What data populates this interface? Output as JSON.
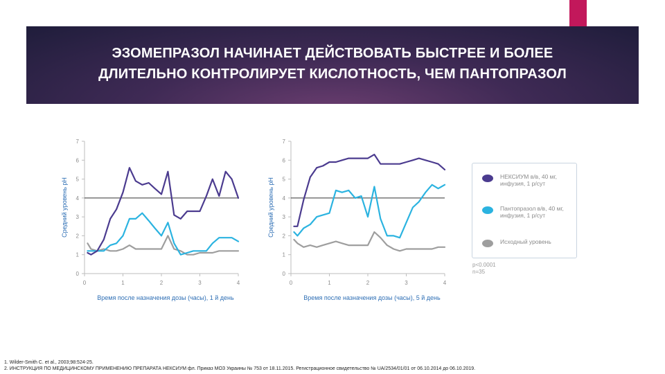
{
  "slide": {
    "title_line1": "ЭЗОМЕПРАЗОЛ НАЧИНАЕТ ДЕЙСТВОВАТЬ БЫСТРЕЕ И БОЛЕЕ",
    "title_line2": "ДЛИТЕЛЬНО КОНТРОЛИРУЕТ КИСЛОТНОСТЬ, ЧЕМ ПАНТОПРАЗОЛ",
    "colors": {
      "banner": "#2b2346",
      "accent": "#c2185b",
      "axis_text": "#2f6fb5"
    }
  },
  "legend": {
    "items": [
      {
        "label": "НЕКСИУМ в/в, 40 мг, инфузия, 1 р/сут",
        "color": "#4b3b8f"
      },
      {
        "label": "Пантопразол в/в, 40 мг, инфузия, 1 р/сут",
        "color": "#2bb3e0"
      },
      {
        "label": "Исходный уровень",
        "color": "#9e9e9e"
      }
    ]
  },
  "stats": {
    "p": "p<0.0001",
    "n": "n=35"
  },
  "references": [
    "1. Wilder-Smith C. et al., 2003;98:524-25.",
    "2. ИНСТРУКЦИЯ ПО МЕДИЦИНСКОМУ ПРИМЕНЕНИЮ ПРЕПАРАТА НЕКСИУМ фл. Приказ МОЗ Украины № 753 от 18.11.2015. Регистрационное свидетельство № UA/2534/01/01 от 06.10.2014 до 06.10.2019."
  ],
  "chart_data": [
    {
      "type": "line",
      "xlabel": "Время после назначения дозы (часы), 1 й день",
      "ylabel": "Средний уровень pH",
      "xlim": [
        0,
        4
      ],
      "ylim": [
        0,
        7
      ],
      "xticks": [
        0,
        1,
        2,
        3,
        4
      ],
      "yticks": [
        0,
        1,
        2,
        3,
        4,
        5,
        6,
        7
      ],
      "reference_line": 4,
      "series": [
        {
          "name": "НЕКСИУМ в/в, 40 мг, инфузия, 1 р/сут",
          "color": "#4b3b8f",
          "x": [
            0.08,
            0.17,
            0.33,
            0.5,
            0.67,
            0.83,
            1.0,
            1.17,
            1.33,
            1.5,
            1.67,
            1.83,
            2.0,
            2.17,
            2.33,
            2.5,
            2.67,
            2.83,
            3.0,
            3.17,
            3.33,
            3.5,
            3.67,
            3.83,
            4.0
          ],
          "y": [
            1.1,
            1.0,
            1.2,
            1.8,
            2.9,
            3.4,
            4.3,
            5.6,
            4.9,
            4.7,
            4.8,
            4.5,
            4.2,
            5.4,
            3.1,
            2.9,
            3.3,
            3.3,
            3.3,
            4.1,
            5.0,
            4.1,
            5.4,
            5.0,
            4.0
          ]
        },
        {
          "name": "Пантопразол в/в, 40 мг, инфузия, 1 р/сут",
          "color": "#2bb3e0",
          "x": [
            0.08,
            0.17,
            0.33,
            0.5,
            0.67,
            0.83,
            1.0,
            1.17,
            1.33,
            1.5,
            1.67,
            1.83,
            2.0,
            2.17,
            2.33,
            2.5,
            2.67,
            2.83,
            3.0,
            3.17,
            3.33,
            3.5,
            3.67,
            3.83,
            4.0
          ],
          "y": [
            1.2,
            1.2,
            1.2,
            1.2,
            1.5,
            1.6,
            2.0,
            2.9,
            2.9,
            3.2,
            2.8,
            2.4,
            2.0,
            2.7,
            1.6,
            1.0,
            1.1,
            1.2,
            1.2,
            1.2,
            1.6,
            1.9,
            1.9,
            1.9,
            1.7
          ]
        },
        {
          "name": "Исходный уровень",
          "color": "#9e9e9e",
          "x": [
            0.08,
            0.17,
            0.33,
            0.5,
            0.67,
            0.83,
            1.0,
            1.17,
            1.33,
            1.5,
            1.67,
            1.83,
            2.0,
            2.17,
            2.33,
            2.5,
            2.67,
            2.83,
            3.0,
            3.17,
            3.33,
            3.5,
            3.67,
            3.83,
            4.0
          ],
          "y": [
            1.6,
            1.3,
            1.2,
            1.3,
            1.2,
            1.2,
            1.3,
            1.5,
            1.3,
            1.3,
            1.3,
            1.3,
            1.3,
            2.0,
            1.3,
            1.2,
            1.0,
            1.0,
            1.1,
            1.1,
            1.1,
            1.2,
            1.2,
            1.2,
            1.2
          ]
        }
      ]
    },
    {
      "type": "line",
      "xlabel": "Время после назначения дозы (часы), 5 й день",
      "ylabel": "Средний уровень pH",
      "xlim": [
        0,
        4
      ],
      "ylim": [
        0,
        7
      ],
      "xticks": [
        0,
        1,
        2,
        3,
        4
      ],
      "yticks": [
        0,
        1,
        2,
        3,
        4,
        5,
        6,
        7
      ],
      "reference_line": 4,
      "series": [
        {
          "name": "НЕКСИУМ в/в, 40 мг, инфузия, 1 р/сут",
          "color": "#4b3b8f",
          "x": [
            0.08,
            0.17,
            0.33,
            0.5,
            0.67,
            0.83,
            1.0,
            1.17,
            1.33,
            1.5,
            1.67,
            1.83,
            2.0,
            2.17,
            2.33,
            2.5,
            2.67,
            2.83,
            3.0,
            3.17,
            3.33,
            3.5,
            3.67,
            3.83,
            4.0
          ],
          "y": [
            2.5,
            2.5,
            3.9,
            5.1,
            5.6,
            5.7,
            5.9,
            5.9,
            6.0,
            6.1,
            6.1,
            6.1,
            6.1,
            6.3,
            5.8,
            5.8,
            5.8,
            5.8,
            5.9,
            6.0,
            6.1,
            6.0,
            5.9,
            5.8,
            5.5
          ]
        },
        {
          "name": "Пантопразол в/в, 40 мг, инфузия, 1 р/сут",
          "color": "#2bb3e0",
          "x": [
            0.08,
            0.17,
            0.33,
            0.5,
            0.67,
            0.83,
            1.0,
            1.17,
            1.33,
            1.5,
            1.67,
            1.83,
            2.0,
            2.17,
            2.33,
            2.5,
            2.67,
            2.83,
            3.0,
            3.17,
            3.33,
            3.5,
            3.67,
            3.83,
            4.0
          ],
          "y": [
            2.2,
            2.0,
            2.4,
            2.6,
            3.0,
            3.1,
            3.2,
            4.4,
            4.3,
            4.4,
            4.0,
            4.1,
            3.0,
            4.6,
            2.9,
            2.0,
            2.0,
            1.9,
            2.7,
            3.5,
            3.8,
            4.3,
            4.7,
            4.5,
            4.7
          ]
        },
        {
          "name": "Исходный уровень",
          "color": "#9e9e9e",
          "x": [
            0.08,
            0.17,
            0.33,
            0.5,
            0.67,
            0.83,
            1.0,
            1.17,
            1.33,
            1.5,
            1.67,
            1.83,
            2.0,
            2.17,
            2.33,
            2.5,
            2.67,
            2.83,
            3.0,
            3.17,
            3.33,
            3.5,
            3.67,
            3.83,
            4.0
          ],
          "y": [
            1.8,
            1.6,
            1.4,
            1.5,
            1.4,
            1.5,
            1.6,
            1.7,
            1.6,
            1.5,
            1.5,
            1.5,
            1.5,
            2.2,
            1.9,
            1.5,
            1.3,
            1.2,
            1.3,
            1.3,
            1.3,
            1.3,
            1.3,
            1.4,
            1.4
          ]
        }
      ]
    }
  ]
}
